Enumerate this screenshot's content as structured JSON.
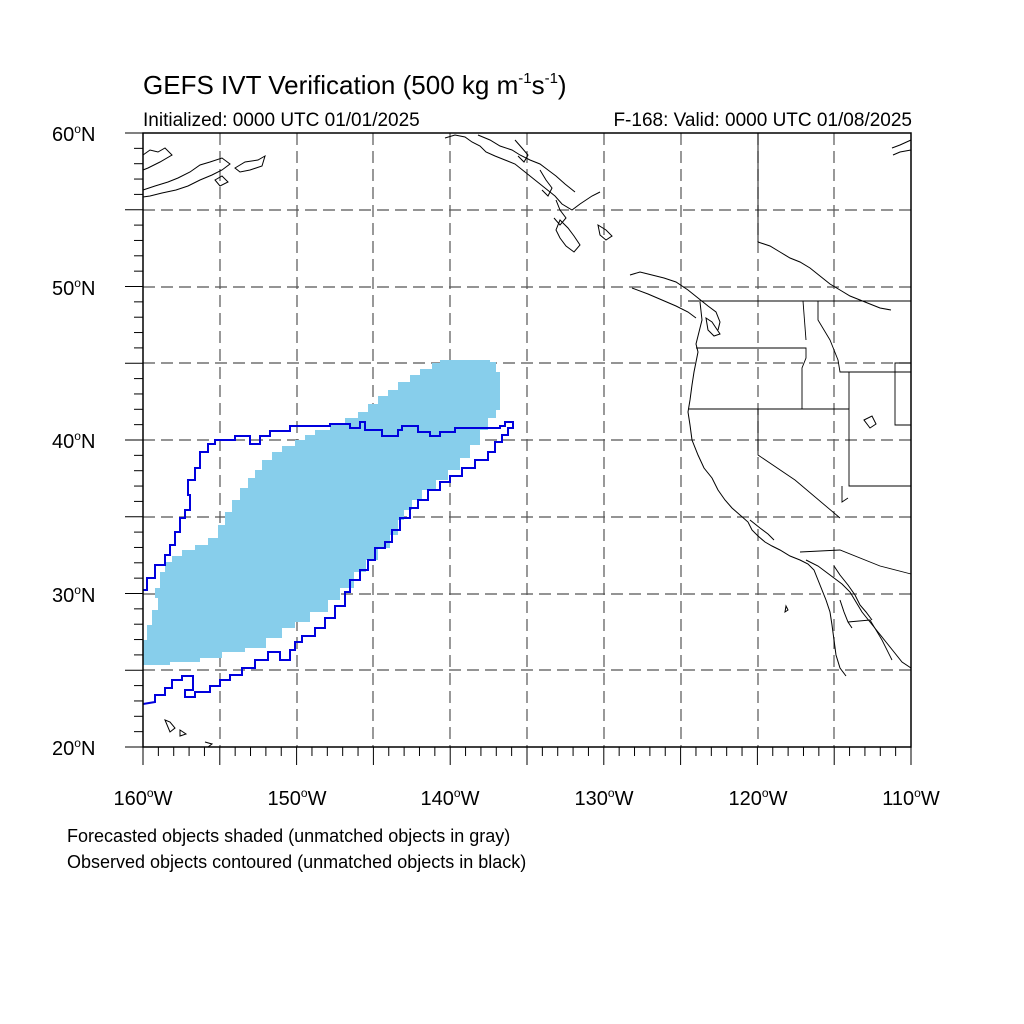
{
  "title": {
    "main": "GEFS IVT Verification (500 kg m",
    "exp1": "-1",
    "mid": "s",
    "exp2": "-1",
    "close": ")"
  },
  "subtitle_left": "Initialized: 0000 UTC 01/01/2025",
  "subtitle_right": "F-168: Valid: 0000 UTC 01/08/2025",
  "lat_labels": [
    {
      "num": "60",
      "suffix": "N"
    },
    {
      "num": "50",
      "suffix": "N"
    },
    {
      "num": "40",
      "suffix": "N"
    },
    {
      "num": "30",
      "suffix": "N"
    },
    {
      "num": "20",
      "suffix": "N"
    }
  ],
  "lon_labels": [
    {
      "num": "160",
      "suffix": "W"
    },
    {
      "num": "150",
      "suffix": "W"
    },
    {
      "num": "140",
      "suffix": "W"
    },
    {
      "num": "130",
      "suffix": "W"
    },
    {
      "num": "120",
      "suffix": "W"
    },
    {
      "num": "110",
      "suffix": "W"
    }
  ],
  "caption_forecast": "Forecasted objects shaded (unmatched objects in gray)",
  "caption_observed": "Observed objects contoured (unmatched objects in black)",
  "colors": {
    "forecast_fill": "#87ceeb",
    "observed_contour": "#0000dd",
    "coastline": "#000000",
    "grid": "#555555"
  },
  "map_extent": {
    "lon_min": -160,
    "lon_max": -110,
    "lat_min": 20,
    "lat_max": 60
  },
  "grid": {
    "dashed": true,
    "lon_step": 5,
    "lat_step": 5
  }
}
